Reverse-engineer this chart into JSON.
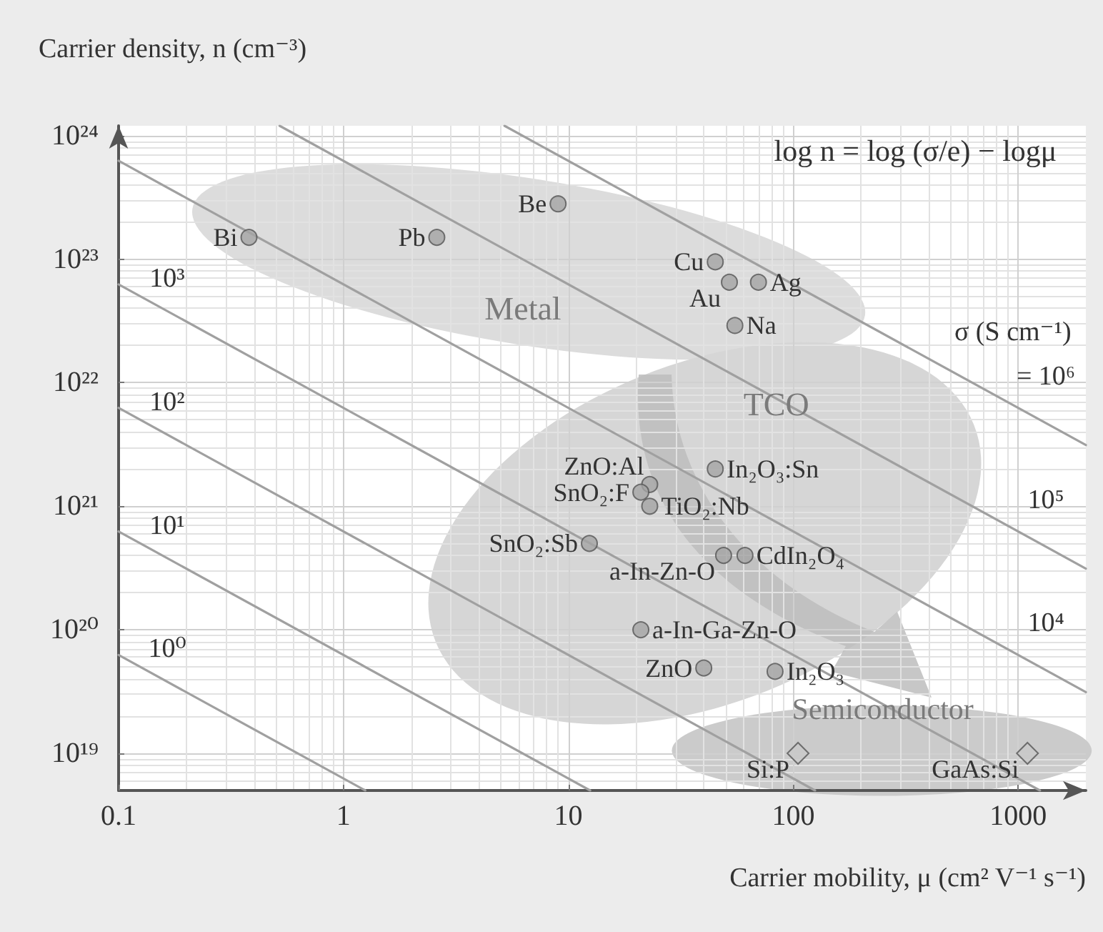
{
  "chart_data": {
    "type": "scatter",
    "xlabel": "Carrier mobility, μ (cm² V⁻¹ s⁻¹)",
    "ylabel": "Carrier density, n (cm⁻³)",
    "log": "xy",
    "grid": true,
    "xlim": [
      0.1,
      2000
    ],
    "ylim": [
      5e+18,
      1.2e+24
    ],
    "xticks": [
      0.1,
      1,
      10,
      100,
      1000
    ],
    "yticks": [
      {
        "value": 1e+19,
        "label": "10¹⁹"
      },
      {
        "value": 1e+20,
        "label": "10²⁰"
      },
      {
        "value": 1e+21,
        "label": "10²¹"
      },
      {
        "value": 1e+22,
        "label": "10²²"
      },
      {
        "value": 1e+23,
        "label": "10²³"
      },
      {
        "value": 1e+24,
        "label": "10²⁴"
      }
    ],
    "series": [
      {
        "type": "line",
        "name": "10⁰",
        "color": "#a0a0a0",
        "x": [
          0.1,
          1.25
        ],
        "values": [
          6.25e+19,
          5e+18
        ]
      },
      {
        "type": "line",
        "name": "10¹",
        "color": "#a0a0a0",
        "x": [
          0.1,
          12.5
        ],
        "values": [
          6.25e+20,
          5e+18
        ]
      },
      {
        "type": "line",
        "name": "10²",
        "color": "#a0a0a0",
        "x": [
          0.1,
          125
        ],
        "values": [
          6.25e+21,
          5e+18
        ]
      },
      {
        "type": "line",
        "name": "10³",
        "color": "#a0a0a0",
        "x": [
          0.1,
          1250
        ],
        "values": [
          6.25e+22,
          5e+18
        ]
      },
      {
        "type": "line",
        "name": "10⁴",
        "color": "#a0a0a0",
        "x": [
          0.1,
          2000
        ],
        "values": [
          6.25e+23,
          3.125e+19
        ]
      },
      {
        "type": "line",
        "name": "10⁵",
        "color": "#a0a0a0",
        "x": [
          0.52,
          2000
        ],
        "values": [
          1.2e+24,
          3.125e+20
        ]
      },
      {
        "type": "line",
        "name": "= 10⁶",
        "color": "#a0a0a0",
        "x": [
          5.2,
          2000
        ],
        "values": [
          1.2e+24,
          3.125e+21
        ]
      },
      {
        "type": "scatter",
        "marker": "circle",
        "color": "#a4a4a4",
        "x": [
          0.38,
          2.6,
          9,
          45,
          52,
          70,
          55,
          23,
          21,
          23,
          45,
          12.4,
          49,
          61,
          21,
          40,
          83
        ],
        "values": [
          1.5e+23,
          1.5e+23,
          2.8e+23,
          9.5e+22,
          6.5e+22,
          6.5e+22,
          2.9e+22,
          1.5e+21,
          1.3e+21,
          1e+21,
          2e+21,
          5e+20,
          4e+20,
          4e+20,
          1e+20,
          4.9e+19,
          4.6e+19
        ]
      },
      {
        "type": "scatter",
        "marker": "diamond",
        "color": "#c8c8c8",
        "x": [
          105,
          1100
        ],
        "values": [
          1e+19,
          1e+19
        ]
      }
    ],
    "annotations": [
      "log n = log (σ/e) − logμ",
      "Metal",
      "TCO",
      "Semiconductor",
      "σ (S cm⁻¹)",
      {
        "text": "Bi",
        "x": 0.38,
        "y": 1.5e+23
      },
      {
        "text": "Pb",
        "x": 2.6,
        "y": 1.5e+23
      },
      {
        "text": "Be",
        "x": 9,
        "y": 2.8e+23
      },
      {
        "text": "Cu",
        "x": 45,
        "y": 9.5e+22
      },
      {
        "text": "Au",
        "x": 52,
        "y": 6.5e+22
      },
      {
        "text": "Ag",
        "x": 70,
        "y": 6.5e+22
      },
      {
        "text": "Na",
        "x": 55,
        "y": 2.9e+22
      },
      {
        "text": "ZnO:Al",
        "x": 23,
        "y": 1.5e+21
      },
      {
        "text": "SnO₂:F",
        "x": 21,
        "y": 1.3e+21
      },
      {
        "text": "TiO₂:Nb",
        "x": 23,
        "y": 1e+21
      },
      {
        "text": "In₂O₃:Sn",
        "x": 45,
        "y": 2e+21
      },
      {
        "text": "SnO₂:Sb",
        "x": 12.4,
        "y": 5e+20
      },
      {
        "text": "a-In-Zn-O",
        "x": 49,
        "y": 4e+20
      },
      {
        "text": "CdIn₂O₄",
        "x": 61,
        "y": 4e+20
      },
      {
        "text": "a-In-Ga-Zn-O",
        "x": 21,
        "y": 1e+20
      },
      {
        "text": "ZnO",
        "x": 40,
        "y": 4.9e+19
      },
      {
        "text": "In₂O₃",
        "x": 83,
        "y": 4.6e+19
      },
      {
        "text": "Si:P",
        "x": 105,
        "y": 1e+19
      },
      {
        "text": "GaAs:Si",
        "x": 1100,
        "y": 1e+19
      }
    ]
  }
}
